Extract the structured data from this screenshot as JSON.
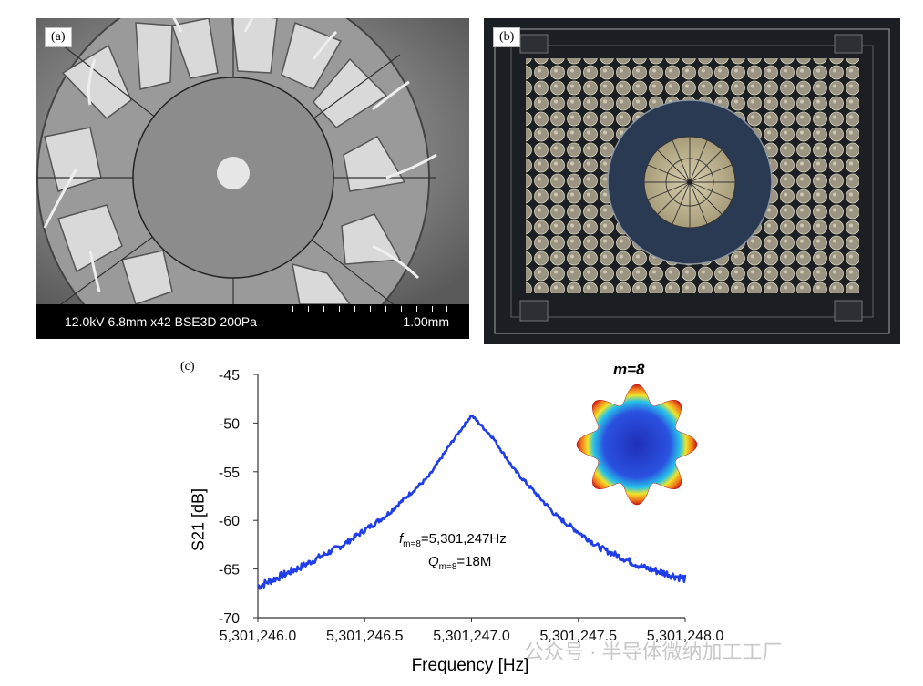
{
  "panels": {
    "a": {
      "label": "(a)",
      "sem_info": "12.0kV 6.8mm x42 BSE3D 200Pa",
      "scale": "1.00mm"
    },
    "b": {
      "label": "(b)"
    },
    "c": {
      "label": "(c)"
    }
  },
  "chart_data": {
    "type": "line",
    "xlabel": "Frequency [Hz]",
    "ylabel": "S21 [dB]",
    "xlim": [
      5301246.0,
      5301248.0
    ],
    "ylim": [
      -70,
      -45
    ],
    "x_tick_labels": [
      "5,301,246.0",
      "5,301,246.5",
      "5,301,247.0",
      "5,301,247.5",
      "5,301,248.0"
    ],
    "y_tick_labels": [
      "-45",
      "-50",
      "-55",
      "-60",
      "-65",
      "-70"
    ],
    "series": [
      {
        "color": "#1f3de8",
        "peak_x": 5301247.0,
        "peak_y": -49.2,
        "x": [
          5301246.0,
          5301246.2,
          5301246.4,
          5301246.6,
          5301246.8,
          5301246.9,
          5301247.0,
          5301247.1,
          5301247.2,
          5301247.4,
          5301247.6,
          5301247.8,
          5301248.0
        ],
        "y": [
          -66.8,
          -64.8,
          -62.5,
          -59.5,
          -55.5,
          -52.2,
          -49.2,
          -51.5,
          -54.8,
          -59.6,
          -62.8,
          -64.8,
          -66.0
        ]
      }
    ],
    "annotations": {
      "inset_title": "m=8",
      "freq": "f",
      "freq_sub": "m=8",
      "freq_val": "=5,301,247Hz",
      "q": "Q",
      "q_sub": "m=8",
      "q_val": "=18M"
    }
  },
  "watermark": "公众号 · 半导体微纳加工工厂"
}
